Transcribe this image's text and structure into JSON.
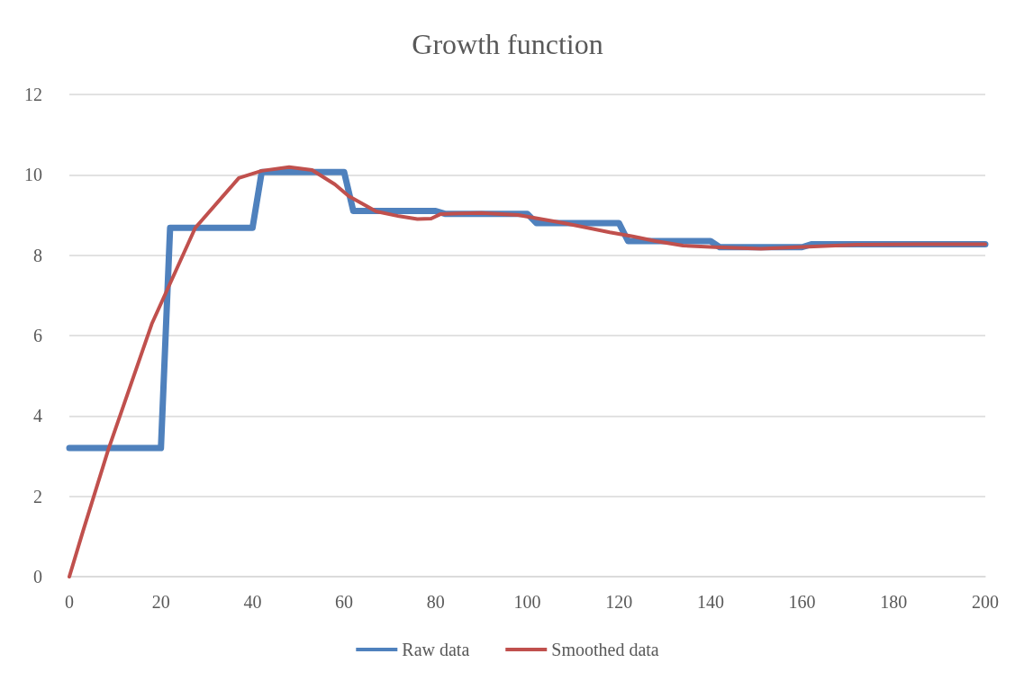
{
  "chart_data": {
    "type": "line",
    "title": "Growth function",
    "xlim": [
      0,
      200
    ],
    "xticks": [
      0,
      20,
      40,
      60,
      80,
      100,
      120,
      140,
      160,
      180,
      200
    ],
    "ylim": [
      0,
      12
    ],
    "yticks": [
      0,
      2,
      4,
      6,
      8,
      10,
      12
    ],
    "grid": "y",
    "legend": "bottom",
    "marker": "none",
    "line_style": "solid",
    "series": [
      {
        "name": "Raw data",
        "color": "#4f81bd",
        "x": [
          0,
          20,
          22,
          40,
          42,
          60,
          62,
          80,
          82,
          100,
          102,
          120,
          122,
          140,
          142,
          160,
          162,
          200
        ],
        "values": [
          3.2,
          3.2,
          8.68,
          8.68,
          10.07,
          10.07,
          9.1,
          9.1,
          9.03,
          9.03,
          8.8,
          8.8,
          8.35,
          8.35,
          8.2,
          8.2,
          8.27,
          8.27
        ]
      },
      {
        "name": "Smoothed data",
        "color": "#c0504d",
        "x": [
          0,
          3,
          8.5,
          18,
          27.5,
          37,
          42,
          48,
          53,
          58,
          61,
          67,
          72,
          76,
          79,
          81,
          85,
          90,
          98,
          108,
          118,
          123,
          128,
          134,
          141,
          151,
          159,
          172,
          185,
          200
        ],
        "values": [
          0,
          1.14,
          3.16,
          6.29,
          8.68,
          9.92,
          10.1,
          10.19,
          10.12,
          9.76,
          9.47,
          9.09,
          8.97,
          8.9,
          8.91,
          9.02,
          9.04,
          9.05,
          9.0,
          8.8,
          8.57,
          8.47,
          8.35,
          8.24,
          8.2,
          8.16,
          8.2,
          8.26,
          8.27,
          8.27
        ]
      }
    ]
  }
}
